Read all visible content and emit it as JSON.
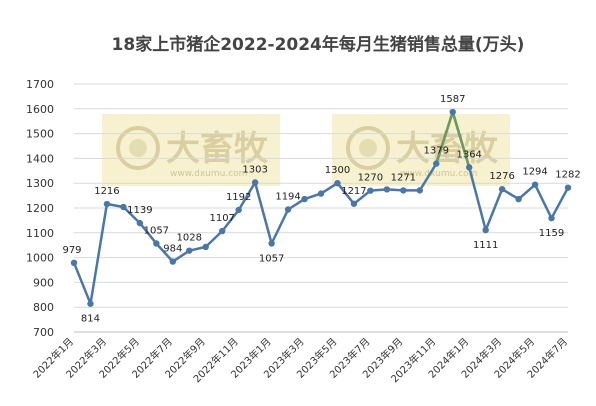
{
  "chart_data": {
    "type": "line",
    "title": "18家上市猪企2022-2024年每月生猪销售总量(万头)",
    "xlabel": "",
    "ylabel": "",
    "ylim": [
      700,
      1700
    ],
    "yticks": [
      700,
      800,
      900,
      1000,
      1100,
      1200,
      1300,
      1400,
      1500,
      1600,
      1700
    ],
    "grid": true,
    "legend": "none",
    "x": [
      "2022年1月",
      "2022年2月",
      "2022年3月",
      "2022年4月",
      "2022年5月",
      "2022年6月",
      "2022年7月",
      "2022年8月",
      "2022年9月",
      "2022年10月",
      "2022年11月",
      "2022年12月",
      "2023年1月",
      "2023年2月",
      "2023年3月",
      "2023年4月",
      "2023年5月",
      "2023年6月",
      "2023年7月",
      "2023年8月",
      "2023年9月",
      "2023年10月",
      "2023年11月",
      "2023年12月",
      "2024年1月",
      "2024年2月",
      "2024年3月",
      "2024年4月",
      "2024年5月",
      "2024年6月",
      "2024年7月"
    ],
    "xtick_labels": [
      "2022年1月",
      "2022年3月",
      "2022年5月",
      "2022年7月",
      "2022年9月",
      "2022年11月",
      "2023年1月",
      "2023年3月",
      "2023年5月",
      "2023年7月",
      "2023年9月",
      "2023年11月",
      "2024年1月",
      "2024年3月",
      "2024年5月",
      "2024年7月"
    ],
    "values": [
      979,
      814,
      1216,
      1204,
      1139,
      1057,
      984,
      1028,
      1043,
      1107,
      1192,
      1303,
      1057,
      1194,
      1236,
      1258,
      1300,
      1217,
      1270,
      1275,
      1271,
      1271,
      1379,
      1587,
      1364,
      1111,
      1276,
      1236,
      1294,
      1159,
      1282
    ],
    "labeled_points": [
      {
        "index": 0,
        "text": "979",
        "pos": "left"
      },
      {
        "index": 1,
        "text": "814",
        "pos": "below"
      },
      {
        "index": 2,
        "text": "1216",
        "pos": "above"
      },
      {
        "index": 4,
        "text": "1139",
        "pos": "above"
      },
      {
        "index": 5,
        "text": "1057",
        "pos": "above"
      },
      {
        "index": 6,
        "text": "984",
        "pos": "above"
      },
      {
        "index": 7,
        "text": "1028",
        "pos": "above"
      },
      {
        "index": 9,
        "text": "1107",
        "pos": "above"
      },
      {
        "index": 10,
        "text": "1192",
        "pos": "above"
      },
      {
        "index": 11,
        "text": "1303",
        "pos": "above"
      },
      {
        "index": 12,
        "text": "1057",
        "pos": "below"
      },
      {
        "index": 13,
        "text": "1194",
        "pos": "above"
      },
      {
        "index": 16,
        "text": "1300",
        "pos": "above"
      },
      {
        "index": 17,
        "text": "1217",
        "pos": "above"
      },
      {
        "index": 18,
        "text": "1270",
        "pos": "above"
      },
      {
        "index": 20,
        "text": "1271",
        "pos": "above"
      },
      {
        "index": 22,
        "text": "1379",
        "pos": "above"
      },
      {
        "index": 23,
        "text": "1587",
        "pos": "above"
      },
      {
        "index": 24,
        "text": "1364",
        "pos": "above"
      },
      {
        "index": 25,
        "text": "1111",
        "pos": "below"
      },
      {
        "index": 26,
        "text": "1276",
        "pos": "above"
      },
      {
        "index": 28,
        "text": "1294",
        "pos": "above"
      },
      {
        "index": 29,
        "text": "1159",
        "pos": "below"
      },
      {
        "index": 30,
        "text": "1282",
        "pos": "above"
      }
    ],
    "highlight_segment": {
      "from": 22,
      "to": 24,
      "color": "#6e9a5c"
    },
    "colors": {
      "line": "#4a76a8",
      "grid": "#d9d9d9",
      "watermark_bg": "#f6efc8"
    }
  },
  "watermark": {
    "text": "大畜牧",
    "url": "www.dxumu.com"
  }
}
